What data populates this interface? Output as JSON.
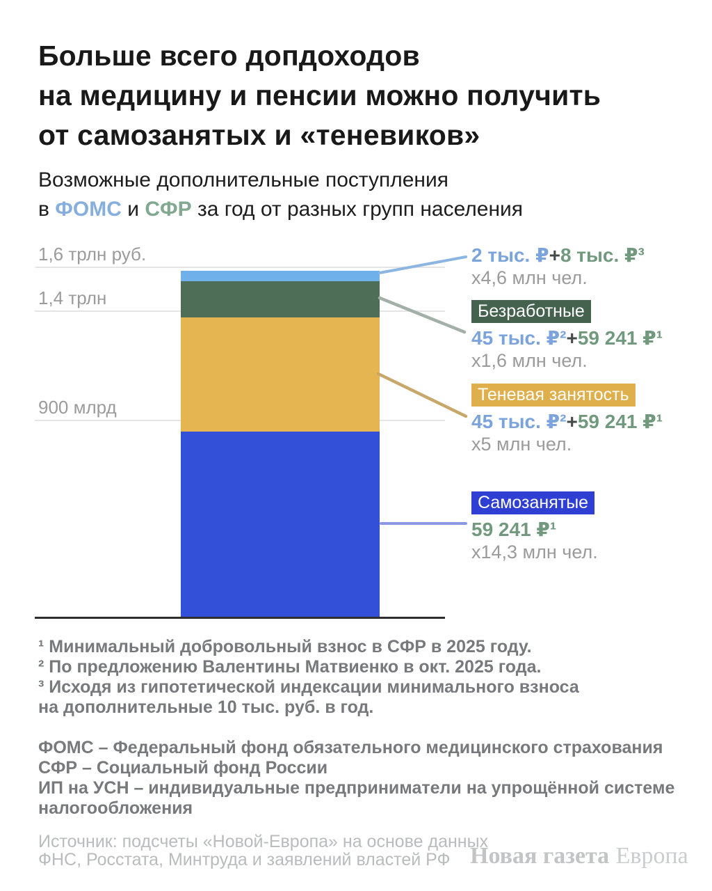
{
  "title": {
    "lines": [
      "Больше всего допдоходов",
      "на медицину и пенсии можно получить",
      "от самозанятых и «теневиков»"
    ]
  },
  "subtitle": {
    "line1": "Возможные дополнительные поступления",
    "line2": {
      "prefix": "в ",
      "fund1": "ФОМС",
      "mid": " и ",
      "fund2": "СФР",
      "suffix": " за год от разных групп населения"
    },
    "fund1_color": "#86afdd",
    "fund2_color": "#82a88f"
  },
  "chart_data": {
    "type": "bar",
    "stacked": true,
    "orientation": "vertical",
    "title": "Возможные дополнительные поступления в ФОМС и СФР за год от разных групп населения",
    "value_unit": "млрд руб. в год",
    "ylim": [
      0,
      1600
    ],
    "grid": true,
    "y_ticks": [
      {
        "label": "1,6 трлн руб.",
        "value": 1600
      },
      {
        "label": "1,4 трлн",
        "value": 1400
      },
      {
        "label": "900 млрд",
        "value": 900
      }
    ],
    "segments": [
      {
        "group": "",
        "contribution_per_person": "2 тыс. ₽+8 тыс. ₽³",
        "people_count": "х4,6 млн чел.",
        "value": 46,
        "color": "#6fb0ea"
      },
      {
        "group": "Безработные",
        "contribution_per_person": "45 тыс. ₽²+59 241 ₽¹",
        "people_count": "х1,6 млн чел.",
        "value": 167,
        "color": "#4e6e58"
      },
      {
        "group": "Теневая занятость",
        "contribution_per_person": "45 тыс. ₽²+59 241 ₽¹",
        "people_count": "х5 млн чел.",
        "value": 521,
        "color": "#e5b552"
      },
      {
        "group": "Самозанятые",
        "contribution_per_person": "59 241 ₽¹",
        "people_count": "х14,3 млн чел.",
        "value": 847,
        "color": "#3350d8"
      }
    ],
    "total_estimate": 1581
  },
  "annotations": [
    {
      "badge": "",
      "badge_color": "",
      "amount_blue": "2 тыс. ₽",
      "plus": "+",
      "amount_green": "8 тыс. ₽³",
      "people": "х4,6 млн чел.",
      "line_color": "#8cb6e2"
    },
    {
      "badge": "Безработные",
      "badge_color": "#44624e",
      "amount_blue": "45 тыс. ₽²",
      "plus": "+",
      "amount_green": "59 241 ₽¹",
      "people": "х1,6 млн чел.",
      "line_color": "#a3b0a7"
    },
    {
      "badge": "Теневая занятость",
      "badge_color": "#dfaf4b",
      "amount_blue": "45 тыс. ₽²",
      "plus": "+",
      "amount_green": "59 241 ₽¹",
      "people": "х5 млн чел.",
      "line_color": "#c8a76a"
    },
    {
      "badge": "Самозанятые",
      "badge_color": "#2f3fd4",
      "amount_blue": "",
      "plus": "",
      "amount_green": "59 241 ₽¹",
      "people": "х14,3 млн чел.",
      "line_color": "#8d97e2"
    }
  ],
  "footnotes": {
    "lines": [
      "¹ Минимальный добровольный взнос в СФР в 2025 году.",
      "² По предложению Валентины Матвиенко в окт. 2025 года.",
      "³ Исходя из гипотетической индексации минимального взноса",
      "на дополнительные 10 тыс. руб. в год."
    ]
  },
  "definitions": {
    "lines": [
      "ФОМС – Федеральный фонд обязательного медицинского страхования",
      "СФР – Социальный фонд России",
      "ИП на УСН – индивидуальные предприниматели на упрощённой системе",
      "налогообложения"
    ]
  },
  "source": {
    "lines": [
      "Источник: подсчеты «Новой-Европа» на основе данных",
      "ФНС, Росстата, Минтруда и заявлений властей РФ"
    ]
  },
  "brand": {
    "bold": "Новая газета",
    "light": "Европа"
  },
  "palette": {
    "amount_blue_text": "#7ba4dc",
    "amount_green_text": "#71997e",
    "plus_text": "#454a47",
    "gray_text": "#9b9b9b",
    "footnote_text": "#77797c",
    "source_text": "#babbbd",
    "gridline": "#e5e5e5",
    "axis_line": "#2e2e2e"
  }
}
